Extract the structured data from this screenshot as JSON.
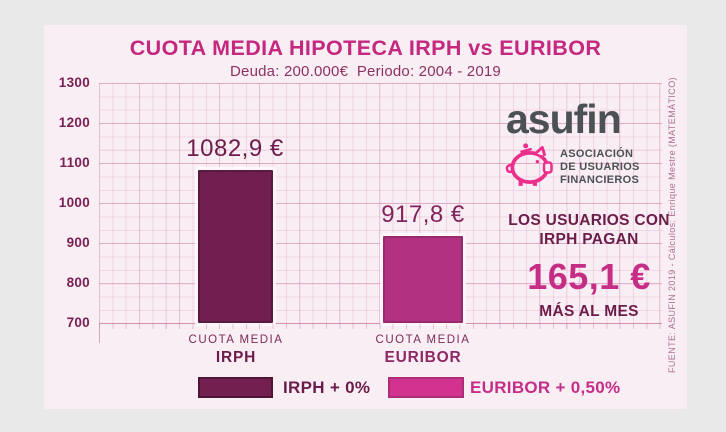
{
  "chart_data": {
    "type": "bar",
    "title": "CUOTA MEDIA HIPOTECA IRPH vs EURIBOR",
    "subtitle": "Deuda: 200.000€  Periodo: 2004 - 2019",
    "categories": [
      "CUOTA MEDIA IRPH",
      "CUOTA MEDIA EURIBOR"
    ],
    "values": [
      1082.9,
      917.8
    ],
    "value_labels": [
      "1082,9 €",
      "917,8 €"
    ],
    "value_label_colors": [
      "#6d1c4c",
      "#82245c"
    ],
    "bar_colors": [
      "#701f50",
      "#b23181"
    ],
    "bar_border_colors": [
      "#581a3f",
      "#962a6b"
    ],
    "ylim": [
      700,
      1300
    ],
    "yticks": [
      1300,
      1200,
      1100,
      1000,
      900,
      800,
      700
    ],
    "xlabel": "",
    "ylabel": "",
    "grid": true,
    "legend_position": "bottom",
    "annotation": "LOS USUARIOS CON IRPH PAGAN 165,1 € MÁS AL MES"
  },
  "category_labels": [
    {
      "line1": "CUOTA MEDIA",
      "line2": "IRPH"
    },
    {
      "line1": "CUOTA MEDIA",
      "line2": "EURIBOR"
    }
  ],
  "legend": [
    {
      "label": "IRPH + 0%",
      "swatch_color": "#731f4f",
      "swatch_border": "#4e1636",
      "label_color": "#6b1d4a"
    },
    {
      "label": "EURIBOR + 0,50%",
      "swatch_color": "#d23390",
      "swatch_border": "#ad2d77",
      "label_color": "#c62e86"
    }
  ],
  "logo": {
    "wordmark": "asufin",
    "tagline_line1": "ASOCIACIÓN",
    "tagline_line2": "DE USUARIOS",
    "tagline_line3": "FINANCIEROS",
    "pig_color": "#ec2f8b",
    "text_color": "#4b5155"
  },
  "callout": {
    "line1": "LOS USUARIOS CON",
    "line2": "IRPH PAGAN",
    "amount": "165,1 €",
    "line3": "MÁS AL MES",
    "amount_color": "#c62e86",
    "text_color": "#6b1d4a"
  },
  "source_note": "FUENTE: ASUFIN 2019 - Cálculos: Enrique Mestre (MATEMÁTICO)",
  "colors": {
    "page_background": "#e9e9e9",
    "card_background": "#f9eef4",
    "title": "#c4287f",
    "subtitle": "#8c3263",
    "axis_labels": "#7b2053"
  }
}
